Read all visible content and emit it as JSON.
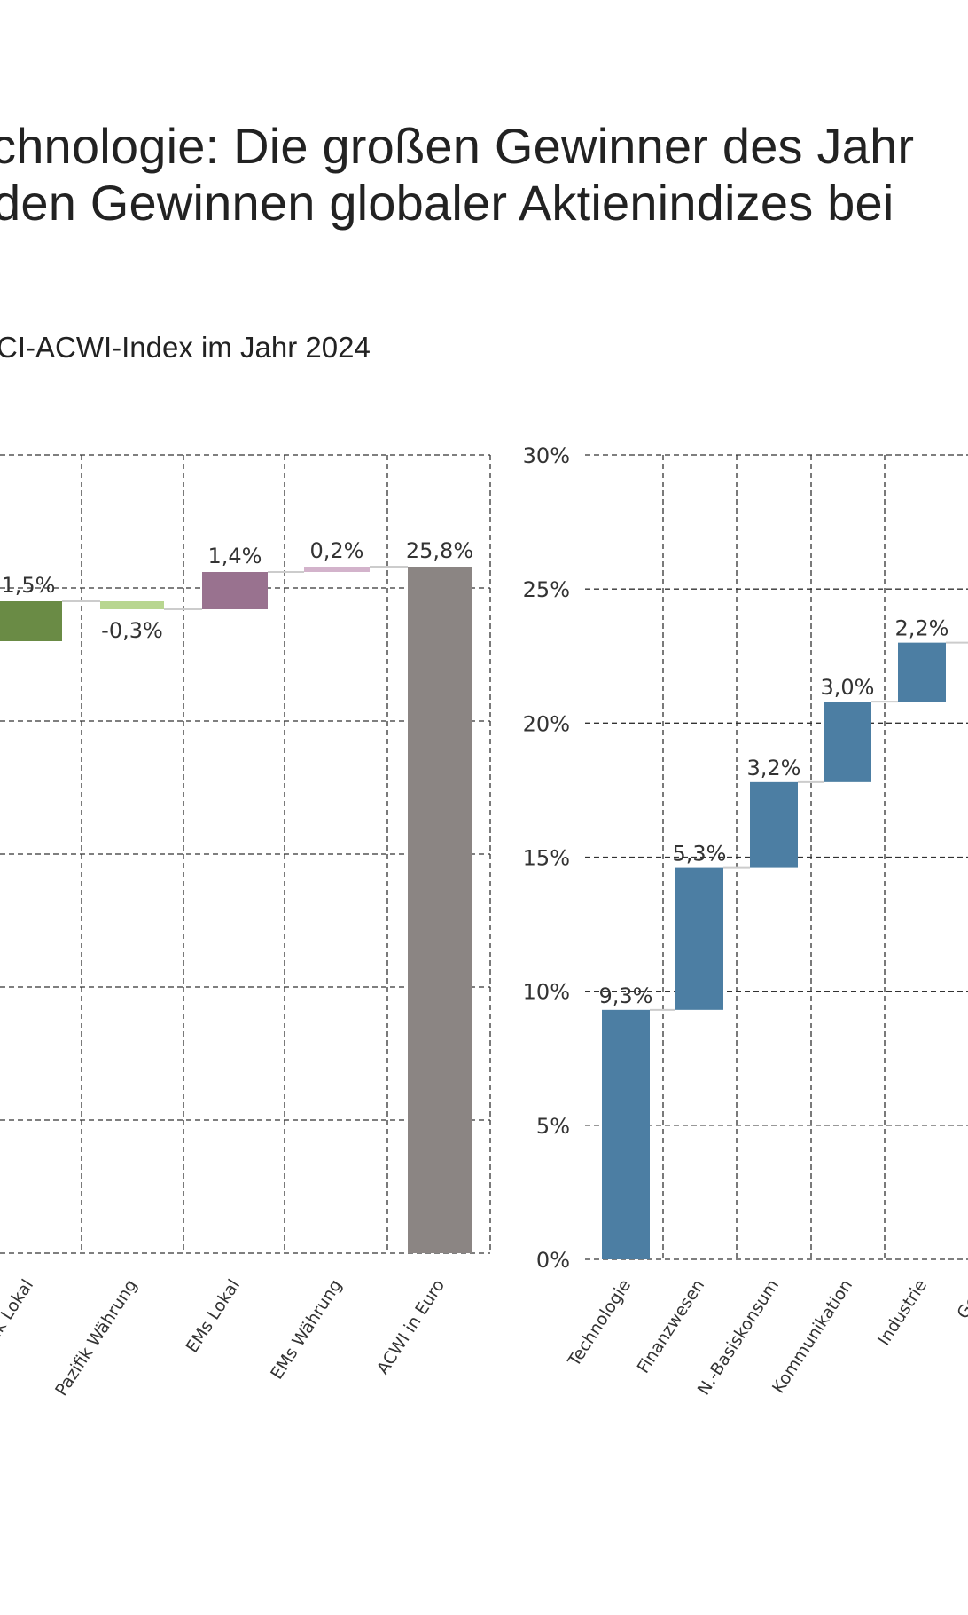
{
  "title": {
    "line1": "chnologie: Die großen Gewinner des Jahr",
    "line2": "den Gewinnen globaler Aktienindizes bei"
  },
  "subtitle": "CI-ACWI-Index im Jahr 2024",
  "colors": {
    "green_dark": "#6a8b45",
    "green_light": "#b8d690",
    "purple": "#99728f",
    "purple_light": "#d3b3cb",
    "gray": "#8b8583",
    "blue": "#4c7ea3",
    "connector": "#cccccc",
    "grid": "#333333"
  },
  "chart_data": [
    {
      "type": "bar",
      "subtype": "waterfall",
      "categories": [
        "ik Lokal",
        "Pazifik Währung",
        "EMs Lokal",
        "EMs Währung",
        "ACWI in Euro"
      ],
      "values": [
        1.5,
        -0.3,
        1.4,
        0.2,
        25.8
      ],
      "labels": [
        "1,5%",
        "-0,3%",
        "1,4%",
        "0,2%",
        "25,8%"
      ],
      "cumulative_end": [
        24.5,
        24.2,
        25.6,
        25.8,
        25.8
      ],
      "ylim": [
        0,
        30
      ],
      "grid": true,
      "y_ticks_visible": false
    },
    {
      "type": "bar",
      "subtype": "waterfall",
      "categories": [
        "Technologie",
        "Finanzwesen",
        "N.-Basiskonsum",
        "Kommunikation",
        "Industrie",
        "Gesu"
      ],
      "values": [
        9.3,
        5.3,
        3.2,
        3.0,
        2.2,
        null
      ],
      "labels": [
        "9,3%",
        "5,3%",
        "3,2%",
        "3,0%",
        "2,2%",
        ""
      ],
      "cumulative_end": [
        9.3,
        14.6,
        17.8,
        20.8,
        23.0,
        null
      ],
      "ylim": [
        0,
        30
      ],
      "y_ticks": [
        "0%",
        "5%",
        "10%",
        "15%",
        "20%",
        "25%",
        "30%"
      ],
      "grid": true
    }
  ]
}
